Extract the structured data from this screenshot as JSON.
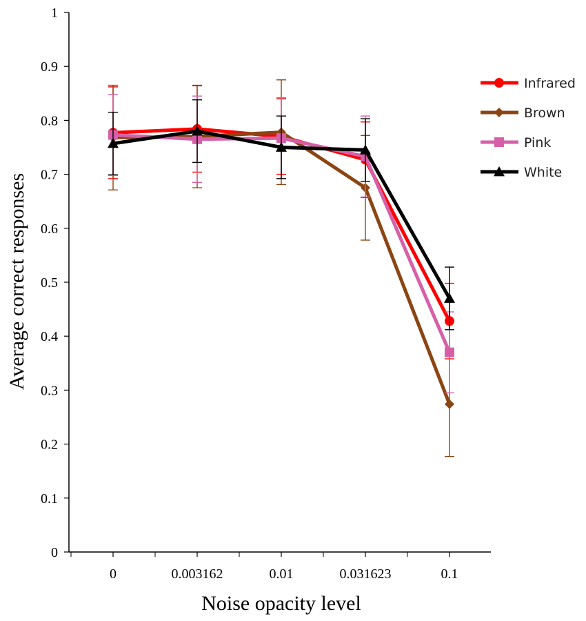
{
  "chart_data": {
    "type": "line",
    "title": "",
    "xlabel": "Noise opacity level",
    "ylabel": "Average correct responses",
    "categories": [
      "0",
      "0.003162",
      "0.01",
      "0.031623",
      "0.1"
    ],
    "ylim": [
      0,
      1
    ],
    "yticks": [
      "0",
      "0.1",
      "0.2",
      "0.3",
      "0.4",
      "0.5",
      "0.6",
      "0.7",
      "0.8",
      "0.9",
      "1"
    ],
    "grid": false,
    "legend_position": "right",
    "series": [
      {
        "name": "Infrared",
        "marker": "circle",
        "color": "#ff0000",
        "values": [
          0.777,
          0.784,
          0.77,
          0.727,
          0.428
        ],
        "errors": [
          0.085,
          0.08,
          0.07,
          0.07,
          0.07
        ]
      },
      {
        "name": "Brown",
        "marker": "diamond",
        "color": "#8b4513",
        "values": [
          0.768,
          0.77,
          0.778,
          0.675,
          0.274
        ],
        "errors": [
          0.097,
          0.095,
          0.097,
          0.097,
          0.097
        ]
      },
      {
        "name": "Pink",
        "marker": "square",
        "color": "#d660a8",
        "values": [
          0.773,
          0.765,
          0.767,
          0.733,
          0.37
        ],
        "errors": [
          0.075,
          0.08,
          0.075,
          0.075,
          0.075
        ]
      },
      {
        "name": "White",
        "marker": "triangle",
        "color": "#000000",
        "values": [
          0.757,
          0.78,
          0.75,
          0.745,
          0.47
        ],
        "errors": [
          0.058,
          0.058,
          0.058,
          0.058,
          0.058
        ]
      }
    ]
  }
}
